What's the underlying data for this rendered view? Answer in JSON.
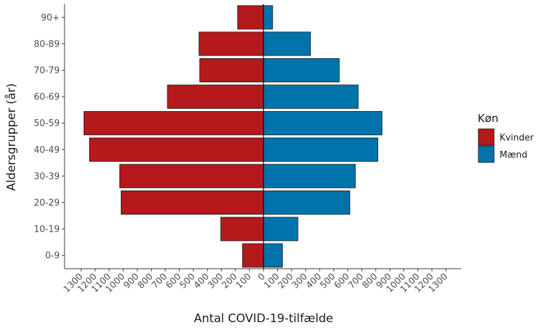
{
  "chart_data": {
    "type": "bar",
    "orientation": "horizontal",
    "layout": "population-pyramid",
    "categories": [
      "0-9",
      "10-19",
      "20-29",
      "30-39",
      "40-49",
      "50-59",
      "60-69",
      "70-79",
      "80-89",
      "90+"
    ],
    "series": [
      {
        "name": "Kvinder",
        "color": "#b5191b",
        "values": [
          150,
          305,
          1015,
          1025,
          1240,
          1280,
          685,
          455,
          460,
          185
        ]
      },
      {
        "name": "Mænd",
        "color": "#0073ab",
        "values": [
          135,
          245,
          615,
          655,
          815,
          845,
          675,
          540,
          335,
          65
        ]
      }
    ],
    "xlabel": "Antal COVID-19-tilfælde",
    "ylabel": "Aldersgrupper (år)",
    "xlim": [
      -1300,
      1300
    ],
    "x_ticks": [
      -1300,
      -1200,
      -1100,
      -1000,
      -900,
      -800,
      -700,
      -600,
      -500,
      -400,
      -300,
      -200,
      -100,
      0,
      100,
      200,
      300,
      400,
      500,
      600,
      700,
      800,
      900,
      1000,
      1100,
      1200,
      1300
    ],
    "x_tick_labels": [
      "1300",
      "1200",
      "1100",
      "1000",
      "900",
      "800",
      "700",
      "600",
      "500",
      "400",
      "300",
      "200",
      "100",
      "0",
      "100",
      "200",
      "300",
      "400",
      "500",
      "600",
      "700",
      "800",
      "900",
      "1000",
      "1100",
      "1200",
      "1300"
    ],
    "grid": false,
    "legend": {
      "title": "Køn",
      "placement": "right"
    }
  }
}
